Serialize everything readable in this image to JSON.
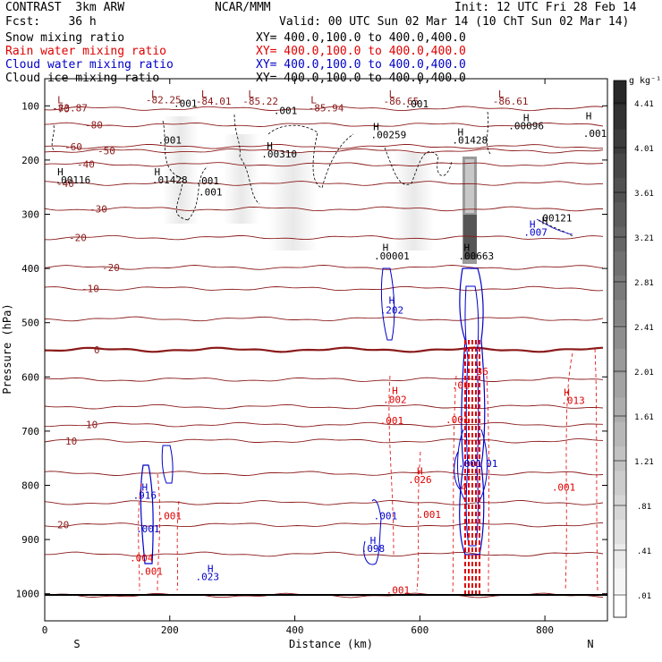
{
  "header": {
    "left_line1": "CONTRAST  3km ARW",
    "center_line1": "NCAR/MMM",
    "right_line1": "Init: 12 UTC Fri 28 Feb 14",
    "left_line2": "Fcst:    36 h",
    "right_line2": "Valid: 00 UTC Sun 02 Mar 14",
    "right_line2b": "(10 ChT Sun 02 Mar 14)",
    "fields": [
      {
        "name": "Snow mixing ratio",
        "xy": "XY= 400.0,100.0 to 400.0,400.0",
        "color": "#000000"
      },
      {
        "name": "Rain water mixing ratio",
        "xy": "XY= 400.0,100.0 to 400.0,400.0",
        "color": "#e00000"
      },
      {
        "name": "Cloud water mixing ratio",
        "xy": "XY= 400.0,100.0 to 400.0,400.0",
        "color": "#0000c8"
      },
      {
        "name": "Cloud ice mixing ratio",
        "xy": "XY= 400.0,100.0 to 400.0,400.0",
        "color": "#000000"
      }
    ]
  },
  "chart_data": {
    "type": "cross-section",
    "xlabel": "Distance (km)",
    "ylabel": "Pressure (hPa)",
    "xlim": [
      0,
      900
    ],
    "ylim": [
      50,
      1050
    ],
    "x_ticks": [
      "0",
      "200",
      "400",
      "600",
      "800"
    ],
    "x_tick_values": [
      0,
      200,
      400,
      600,
      800
    ],
    "y_ticks": [
      "100",
      "200",
      "300",
      "400",
      "500",
      "600",
      "700",
      "800",
      "900",
      "1000"
    ],
    "y_tick_values": [
      100,
      200,
      300,
      400,
      500,
      600,
      700,
      800,
      900,
      1000
    ],
    "left_end_label": "S",
    "right_end_label": "N",
    "colorbar": {
      "unit": "g kg⁻¹",
      "labels": [
        "4.41",
        "4.01",
        "3.61",
        "3.21",
        "2.81",
        "2.41",
        "2.01",
        "1.61",
        "1.21",
        ".81",
        ".41",
        ".01"
      ],
      "values": [
        4.41,
        4.01,
        3.61,
        3.21,
        2.81,
        2.41,
        2.01,
        1.61,
        1.21,
        0.81,
        0.41,
        0.01
      ]
    },
    "temperature_contours": {
      "color": "#8b1a1a",
      "levels": [
        {
          "p": 105,
          "label": "-70"
        },
        {
          "p": 135,
          "label": "-80"
        },
        {
          "p": 175,
          "label": "-60"
        },
        {
          "p": 183,
          "label": "-50"
        },
        {
          "p": 208,
          "label": "-40"
        },
        {
          "p": 243,
          "label": "-40"
        },
        {
          "p": 290,
          "label": "-30"
        },
        {
          "p": 343,
          "label": "-20"
        },
        {
          "p": 398,
          "label": "-20"
        },
        {
          "p": 437,
          "label": "-10"
        },
        {
          "p": 493,
          "label": ""
        },
        {
          "p": 550,
          "label": "0"
        },
        {
          "p": 605,
          "label": ""
        },
        {
          "p": 655,
          "label": ""
        },
        {
          "p": 688,
          "label": "10"
        },
        {
          "p": 718,
          "label": "10"
        },
        {
          "p": 778,
          "label": ""
        },
        {
          "p": 832,
          "label": ""
        },
        {
          "p": 873,
          "label": "20"
        },
        {
          "p": 927,
          "label": ""
        },
        {
          "p": 1003,
          "label": ""
        }
      ]
    },
    "annotations": [
      {
        "x": 25,
        "p": 95,
        "text": "L",
        "color": "#8b1a1a"
      },
      {
        "x": 40,
        "p": 110,
        "text": "-83.87",
        "color": "#8b1a1a"
      },
      {
        "x": 175,
        "p": 85,
        "text": "L",
        "color": "#8b1a1a"
      },
      {
        "x": 190,
        "p": 95,
        "text": "-82.25",
        "color": "#8b1a1a"
      },
      {
        "x": 255,
        "p": 85,
        "text": "L",
        "color": "#8b1a1a"
      },
      {
        "x": 270,
        "p": 98,
        "text": "-84.01",
        "color": "#8b1a1a"
      },
      {
        "x": 330,
        "p": 85,
        "text": "L",
        "color": "#8b1a1a"
      },
      {
        "x": 345,
        "p": 98,
        "text": "-85.22",
        "color": "#8b1a1a"
      },
      {
        "x": 430,
        "p": 95,
        "text": "L",
        "color": "#8b1a1a"
      },
      {
        "x": 450,
        "p": 110,
        "text": "-85.94",
        "color": "#8b1a1a"
      },
      {
        "x": 555,
        "p": 85,
        "text": "L",
        "color": "#8b1a1a"
      },
      {
        "x": 570,
        "p": 98,
        "text": "-86.65",
        "color": "#8b1a1a"
      },
      {
        "x": 730,
        "p": 85,
        "text": "L",
        "color": "#8b1a1a"
      },
      {
        "x": 745,
        "p": 98,
        "text": "-86.61",
        "color": "#8b1a1a"
      },
      {
        "x": 225,
        "p": 102,
        "text": ".001",
        "color": "#000000"
      },
      {
        "x": 385,
        "p": 115,
        "text": ".001",
        "color": "#000000"
      },
      {
        "x": 595,
        "p": 103,
        "text": ".001",
        "color": "#000000"
      },
      {
        "x": 770,
        "p": 128,
        "text": "H",
        "color": "#000000"
      },
      {
        "x": 770,
        "p": 143,
        "text": ".00096",
        "color": "#000000"
      },
      {
        "x": 870,
        "p": 125,
        "text": "H",
        "color": "#000000"
      },
      {
        "x": 880,
        "p": 157,
        "text": ".001",
        "color": "#000000"
      },
      {
        "x": 200,
        "p": 170,
        "text": ".001",
        "color": "#000000"
      },
      {
        "x": 360,
        "p": 180,
        "text": "H",
        "color": "#000000"
      },
      {
        "x": 375,
        "p": 195,
        "text": ".00310",
        "color": "#000000"
      },
      {
        "x": 530,
        "p": 145,
        "text": "H",
        "color": "#000000"
      },
      {
        "x": 550,
        "p": 160,
        "text": ".00259",
        "color": "#000000"
      },
      {
        "x": 665,
        "p": 155,
        "text": "H",
        "color": "#000000"
      },
      {
        "x": 680,
        "p": 170,
        "text": ".01428",
        "color": "#000000"
      },
      {
        "x": 25,
        "p": 228,
        "text": "H",
        "color": "#000000"
      },
      {
        "x": 45,
        "p": 243,
        "text": ".00116",
        "color": "#000000"
      },
      {
        "x": 180,
        "p": 228,
        "text": "H",
        "color": "#000000"
      },
      {
        "x": 200,
        "p": 243,
        "text": ".01428",
        "color": "#000000"
      },
      {
        "x": 260,
        "p": 245,
        "text": ".001",
        "color": "#000000"
      },
      {
        "x": 265,
        "p": 265,
        "text": ".001",
        "color": "#000000"
      },
      {
        "x": 545,
        "p": 368,
        "text": "H",
        "color": "#000000"
      },
      {
        "x": 555,
        "p": 383,
        "text": ".00001",
        "color": "#000000"
      },
      {
        "x": 675,
        "p": 368,
        "text": "H",
        "color": "#000000"
      },
      {
        "x": 690,
        "p": 383,
        "text": ".00663",
        "color": "#000000"
      },
      {
        "x": 800,
        "p": 318,
        "text": "H",
        "color": "#000000"
      },
      {
        "x": 815,
        "p": 313,
        "text": ".00121",
        "color": "#000000"
      },
      {
        "x": 780,
        "p": 325,
        "text": "H",
        "color": "#0000c8"
      },
      {
        "x": 785,
        "p": 340,
        "text": ".007",
        "color": "#0000c8"
      },
      {
        "x": 555,
        "p": 465,
        "text": "H",
        "color": "#0000c8"
      },
      {
        "x": 555,
        "p": 483,
        "text": ".202",
        "color": "#0000c8"
      },
      {
        "x": 160,
        "p": 810,
        "text": "H",
        "color": "#0000c8"
      },
      {
        "x": 160,
        "p": 825,
        "text": ".916",
        "color": "#0000c8"
      },
      {
        "x": 165,
        "p": 887,
        "text": ".001",
        "color": "#0000c8"
      },
      {
        "x": 265,
        "p": 960,
        "text": "H",
        "color": "#0000c8"
      },
      {
        "x": 260,
        "p": 975,
        "text": ".023",
        "color": "#0000c8"
      },
      {
        "x": 545,
        "p": 863,
        "text": ".001",
        "color": "#0000c8"
      },
      {
        "x": 525,
        "p": 908,
        "text": "H",
        "color": "#0000c8"
      },
      {
        "x": 525,
        "p": 923,
        "text": ".098",
        "color": "#0000c8"
      },
      {
        "x": 560,
        "p": 632,
        "text": "H",
        "color": "#e00000"
      },
      {
        "x": 560,
        "p": 648,
        "text": ".002",
        "color": "#e00000"
      },
      {
        "x": 555,
        "p": 687,
        "text": ".001",
        "color": "#e00000"
      },
      {
        "x": 600,
        "p": 780,
        "text": "H",
        "color": "#e00000"
      },
      {
        "x": 600,
        "p": 796,
        "text": ".026",
        "color": "#e00000"
      },
      {
        "x": 615,
        "p": 860,
        "text": ".001",
        "color": "#e00000"
      },
      {
        "x": 565,
        "p": 1000,
        "text": ".001",
        "color": "#e00000"
      },
      {
        "x": 200,
        "p": 863,
        "text": ".001",
        "color": "#e00000"
      },
      {
        "x": 170,
        "p": 965,
        "text": ".001",
        "color": "#e00000"
      },
      {
        "x": 835,
        "p": 635,
        "text": "H",
        "color": "#e00000"
      },
      {
        "x": 845,
        "p": 650,
        "text": ".013",
        "color": "#e00000"
      },
      {
        "x": 830,
        "p": 810,
        "text": ".001",
        "color": "#e00000"
      },
      {
        "x": 665,
        "p": 622,
        "text": ".01",
        "color": "#e00000"
      },
      {
        "x": 660,
        "p": 685,
        "text": ".001",
        "color": "#e00000"
      },
      {
        "x": 700,
        "p": 596,
        "text": "36",
        "color": "#e00000"
      },
      {
        "x": 680,
        "p": 766,
        "text": ".001",
        "color": "#0000c8"
      },
      {
        "x": 715,
        "p": 766,
        "text": "01",
        "color": "#0000c8"
      },
      {
        "x": 670,
        "p": 810,
        "text": "4",
        "color": "#e00000"
      },
      {
        "x": 155,
        "p": 940,
        "text": ".004",
        "color": "#e00000"
      }
    ]
  }
}
